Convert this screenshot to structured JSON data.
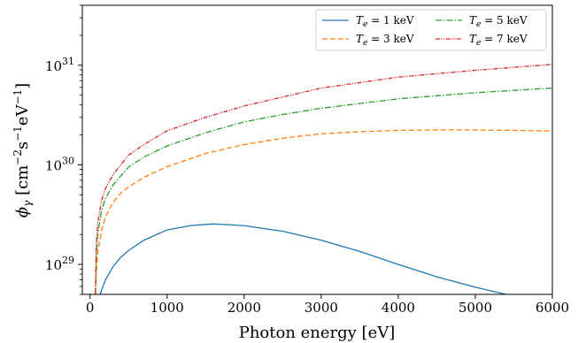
{
  "chart_data": {
    "type": "line",
    "xlabel": "Photon energy [eV]",
    "ylabel": "ϕ_γ [cm⁻²s⁻¹eV⁻¹]",
    "xlim": [
      -100,
      6000
    ],
    "ylim": [
      5e+28,
      4e+31
    ],
    "yscale": "log",
    "x_ticks": [
      0,
      1000,
      2000,
      3000,
      4000,
      5000,
      6000
    ],
    "x_tick_labels": [
      "0",
      "1000",
      "2000",
      "3000",
      "4000",
      "5000",
      "6000"
    ],
    "y_ticks": [
      1e+29,
      1e+30,
      1e+31
    ],
    "y_tick_labels": [
      {
        "base": "10",
        "exp": "29"
      },
      {
        "base": "10",
        "exp": "30"
      },
      {
        "base": "10",
        "exp": "31"
      }
    ],
    "grid": false,
    "legend_placement": "top-right",
    "legend_columns": 2,
    "series": [
      {
        "name": "T_e =  1 keV",
        "legend_symbol": "T",
        "legend_sub": "e",
        "legend_rest": "=  1 keV",
        "color": "#1f77b4",
        "dash": "",
        "x": [
          130,
          150,
          200,
          300,
          400,
          500,
          700,
          1000,
          1300,
          1600,
          2000,
          2500,
          3000,
          3500,
          4000,
          4500,
          5000,
          5500
        ],
        "y": [
          5e+28,
          5.5e+28,
          7e+28,
          9.5e+28,
          1.18e+29,
          1.38e+29,
          1.75e+29,
          2.22e+29,
          2.45e+29,
          2.55e+29,
          2.45e+29,
          2.15e+29,
          1.75e+29,
          1.35e+29,
          1e+29,
          7.5e+28,
          5.9e+28,
          4.8e+28
        ]
      },
      {
        "name": "T_e =  3 keV",
        "legend_symbol": "T",
        "legend_sub": "e",
        "legend_rest": "=  3 keV",
        "color": "#ff7f0e",
        "dash": "6,3",
        "x": [
          70,
          80,
          100,
          150,
          200,
          300,
          400,
          500,
          700,
          1000,
          1500,
          2000,
          2500,
          3000,
          3500,
          4000,
          4700,
          5500,
          6000
        ],
        "y": [
          5e+28,
          8e+28,
          1.3e+29,
          2.2e+29,
          3e+29,
          4.2e+29,
          5.2e+29,
          6e+29,
          7.5e+29,
          9.6e+29,
          1.3e+30,
          1.6e+30,
          1.85e+30,
          2.05e+30,
          2.15e+30,
          2.22e+30,
          2.25e+30,
          2.22e+30,
          2.18e+30
        ]
      },
      {
        "name": "T_e =  5 keV",
        "legend_symbol": "T",
        "legend_sub": "e",
        "legend_rest": "=  5 keV",
        "color": "#2ca02c",
        "dash": "7,2,1.5,2",
        "x": [
          70,
          80,
          100,
          150,
          200,
          300,
          500,
          700,
          1000,
          1500,
          2000,
          2500,
          3000,
          4000,
          5000,
          6000
        ],
        "y": [
          5e+28,
          1.2e+29,
          2e+29,
          3.5e+29,
          4.6e+29,
          6.3e+29,
          9.5e+29,
          1.2e+30,
          1.55e+30,
          2.1e+30,
          2.7e+30,
          3.2e+30,
          3.7e+30,
          4.6e+30,
          5.3e+30,
          5.9e+30
        ]
      },
      {
        "name": "T_e =  7 keV",
        "legend_symbol": "T",
        "legend_sub": "e",
        "legend_rest": "=  7 keV",
        "color": "#d62728",
        "dash": "5,1.5,1.2,1.5,1.2,1.5",
        "x": [
          70,
          80,
          100,
          150,
          200,
          300,
          500,
          700,
          1000,
          1500,
          2000,
          3000,
          4000,
          5000,
          6000
        ],
        "y": [
          5e+28,
          1.5e+29,
          2.6e+29,
          4.4e+29,
          5.8e+29,
          8e+29,
          1.25e+30,
          1.6e+30,
          2.2e+30,
          3e+30,
          3.9e+30,
          5.9e+30,
          7.6e+30,
          8.9e+30,
          1.02e+31
        ]
      }
    ]
  }
}
